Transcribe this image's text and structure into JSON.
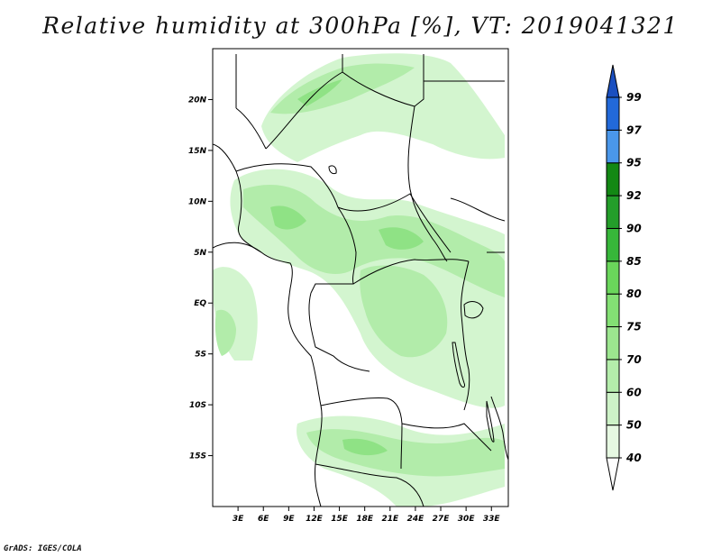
{
  "title": "Relative humidity at 300hPa [%], VT: 2019041321",
  "credit": "GrADS: IGES/COLA",
  "map": {
    "lon_range": [
      0,
      35
    ],
    "lat_range": [
      -20,
      25
    ],
    "lon_ticks": [
      "3E",
      "6E",
      "9E",
      "12E",
      "15E",
      "18E",
      "21E",
      "24E",
      "27E",
      "30E",
      "33E"
    ],
    "lat_ticks": [
      "20N",
      "15N",
      "10N",
      "5N",
      "EQ",
      "5S",
      "10S",
      "15S"
    ]
  },
  "legend": {
    "levels": [
      "40",
      "50",
      "60",
      "70",
      "75",
      "80",
      "85",
      "90",
      "92",
      "95",
      "97",
      "99"
    ],
    "colors": [
      "#ffffff",
      "#e6f8e2",
      "#cdf2c7",
      "#b4edab",
      "#9ce68f",
      "#83e074",
      "#6ad65b",
      "#37b73a",
      "#249e2a",
      "#138814",
      "#4a97ea",
      "#2269d9",
      "#1a4fc0"
    ]
  },
  "fields": {
    "low_color": "#d3f5cf",
    "mid_color": "#b2ecaa",
    "high_color": "#8fe285"
  }
}
